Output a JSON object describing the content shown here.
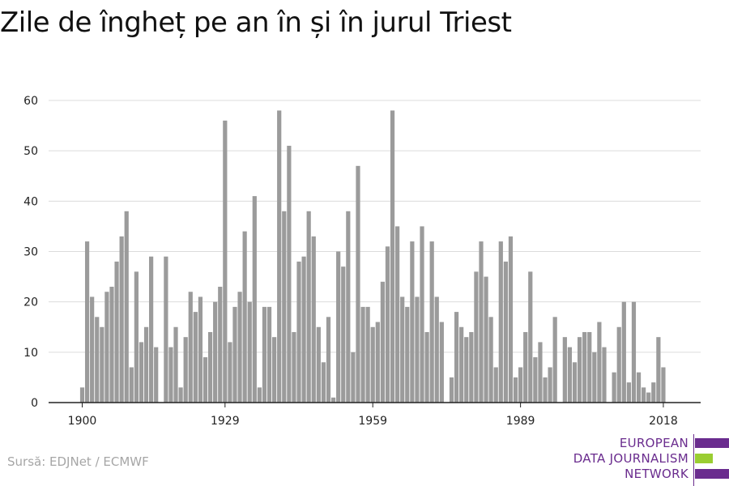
{
  "title": "Zile de îngheț pe an în și în jurul Triest",
  "source": "Sursă: EDJNet / ECMWF",
  "logo": {
    "lines": [
      "EUROPEAN",
      "DATA JOURNALISM",
      "NETWORK"
    ],
    "colors": {
      "purple": "#6a2c8e",
      "green": "#9acd32"
    }
  },
  "colors": {
    "bar": "#9b9b9b",
    "grid": "#dcdcdc",
    "axis": "#222222"
  },
  "chart_data": {
    "type": "bar",
    "title": "Zile de îngheț pe an în și în jurul Triest",
    "xlabel": "",
    "ylabel": "",
    "ylim": [
      0,
      60
    ],
    "yticks": [
      0,
      10,
      20,
      30,
      40,
      50,
      60
    ],
    "xticks": [
      1900,
      1929,
      1959,
      1989,
      2018
    ],
    "grid": true,
    "years": [
      1900,
      1901,
      1902,
      1903,
      1904,
      1905,
      1906,
      1907,
      1908,
      1909,
      1910,
      1911,
      1912,
      1913,
      1914,
      1915,
      1916,
      1917,
      1918,
      1919,
      1920,
      1921,
      1922,
      1923,
      1924,
      1925,
      1926,
      1927,
      1928,
      1929,
      1930,
      1931,
      1932,
      1933,
      1934,
      1935,
      1936,
      1937,
      1938,
      1939,
      1940,
      1941,
      1942,
      1943,
      1944,
      1945,
      1946,
      1947,
      1948,
      1949,
      1950,
      1951,
      1952,
      1953,
      1954,
      1955,
      1956,
      1957,
      1958,
      1959,
      1960,
      1961,
      1962,
      1963,
      1964,
      1965,
      1966,
      1967,
      1968,
      1969,
      1970,
      1971,
      1972,
      1973,
      1974,
      1975,
      1976,
      1977,
      1978,
      1979,
      1980,
      1981,
      1982,
      1983,
      1984,
      1985,
      1986,
      1987,
      1988,
      1989,
      1990,
      1991,
      1992,
      1993,
      1994,
      1995,
      1996,
      1997,
      1998,
      1999,
      2000,
      2001,
      2002,
      2003,
      2004,
      2005,
      2006,
      2007,
      2008,
      2009,
      2010,
      2011,
      2012,
      2013,
      2014,
      2015,
      2016,
      2017,
      2018
    ],
    "values": [
      3,
      32,
      21,
      17,
      15,
      22,
      23,
      28,
      33,
      38,
      7,
      26,
      12,
      15,
      29,
      11,
      0,
      29,
      11,
      15,
      3,
      13,
      22,
      18,
      21,
      9,
      14,
      20,
      23,
      56,
      12,
      19,
      22,
      34,
      20,
      41,
      3,
      19,
      19,
      13,
      58,
      38,
      51,
      14,
      28,
      29,
      38,
      33,
      15,
      8,
      17,
      1,
      30,
      27,
      38,
      10,
      47,
      19,
      19,
      15,
      16,
      24,
      31,
      58,
      35,
      21,
      19,
      32,
      21,
      35,
      14,
      32,
      21,
      16,
      0,
      5,
      18,
      15,
      13,
      14,
      26,
      32,
      25,
      17,
      7,
      32,
      28,
      33,
      5,
      7,
      14,
      26,
      9,
      12,
      5,
      7,
      17,
      0,
      13,
      11,
      8,
      13,
      14,
      14,
      10,
      16,
      11,
      0,
      6,
      15,
      20,
      4,
      20,
      6,
      3,
      2,
      4,
      13,
      7
    ]
  }
}
